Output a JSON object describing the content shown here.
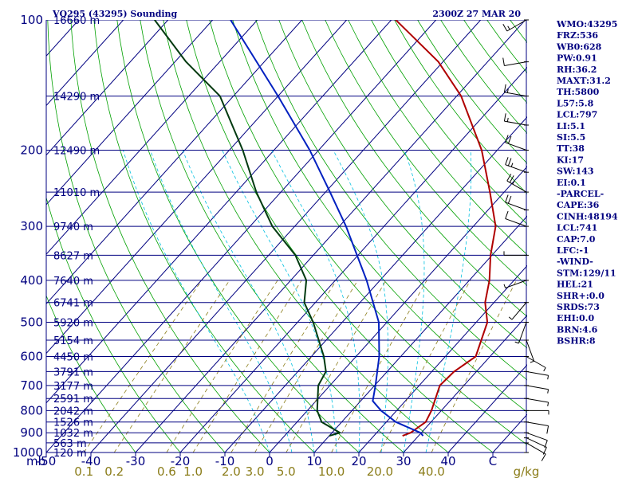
{
  "header": {
    "title": "VQ295 (43295) Sounding",
    "time": "2300Z 27 MAR 20"
  },
  "indices": [
    "WMO:43295",
    "FRZ:536",
    "WB0:628",
    "PW:0.91",
    "RH:36.2",
    "MAXT:31.2",
    "TH:5800",
    "L57:5.8",
    "LCL:797",
    "LI:5.1",
    "SI:5.5",
    "TT:38",
    "KI:17",
    "SW:143",
    "EI:0.1",
    "-PARCEL-",
    "CAPE:36",
    "CINH:48194",
    "LCL:741",
    "CAP:7.0",
    "LFC:-1",
    "-WIND-",
    "STM:129/11",
    "HEL:21",
    "SHR+:0.0",
    "SRDS:73",
    "EHI:0.0",
    "BRN:4.6",
    "BSHR:8"
  ],
  "colors": {
    "axis": "#000080",
    "isobar": "#000080",
    "isotherm": "#000080",
    "dry_adiabat": "#00a000",
    "moist_adiabat": "#00c0e0",
    "mixing_ratio": "#8b7d1a",
    "temperature": "#b00000",
    "dewpoint": "#003a10",
    "parcel": "#0020c0",
    "wind_barb": "#000000"
  },
  "chart_data": {
    "type": "line",
    "title": "VQ295 (43295) Sounding",
    "xlabel": "",
    "ylabel": "mb",
    "y_scale": "log",
    "ylim": [
      1000,
      100
    ],
    "xlim": [
      -50,
      50
    ],
    "pressure_labels": [
      "100",
      "200",
      "300",
      "400",
      "500",
      "600",
      "700",
      "800",
      "900",
      "1000"
    ],
    "pressure_ticks": [
      100,
      200,
      300,
      400,
      500,
      600,
      700,
      800,
      900,
      1000
    ],
    "unit_mb": "mb",
    "temp_ticks": [
      "-50",
      "-40",
      "-30",
      "-20",
      "-10",
      "0",
      "10",
      "20",
      "30",
      "40",
      "C"
    ],
    "mixing_ratio_labels": [
      "0.1",
      "0.2",
      "0.6",
      "1.0",
      "2.0",
      "3.0",
      "5.0",
      "10.0",
      "20.0",
      "40.0",
      "g/kg"
    ],
    "height_labels": [
      {
        "text": "16660 m",
        "p": 100
      },
      {
        "text": "14290 m",
        "p": 150
      },
      {
        "text": "12490 m",
        "p": 200
      },
      {
        "text": "11010 m",
        "p": 250
      },
      {
        "text": "9740 m",
        "p": 300
      },
      {
        "text": "8627 m",
        "p": 350
      },
      {
        "text": "7640 m",
        "p": 400
      },
      {
        "text": "6741 m",
        "p": 450
      },
      {
        "text": "5920 m",
        "p": 500
      },
      {
        "text": "5154 m",
        "p": 550
      },
      {
        "text": "4450 m",
        "p": 600
      },
      {
        "text": "3791 m",
        "p": 650
      },
      {
        "text": "3177 m",
        "p": 700
      },
      {
        "text": "2591 m",
        "p": 750
      },
      {
        "text": "2042 m",
        "p": 800
      },
      {
        "text": "1526 m",
        "p": 850
      },
      {
        "text": "1032 m",
        "p": 900
      },
      {
        "text": "563 m",
        "p": 950
      },
      {
        "text": "120 m",
        "p": 1000
      }
    ],
    "series": [
      {
        "key": "temperature",
        "points": [
          [
            915,
            26.4
          ],
          [
            900,
            27.6
          ],
          [
            850,
            28.8
          ],
          [
            800,
            27.8
          ],
          [
            700,
            24.6
          ],
          [
            650,
            25.0
          ],
          [
            600,
            26.8
          ],
          [
            500,
            22.5
          ],
          [
            450,
            18.0
          ],
          [
            400,
            14.5
          ],
          [
            350,
            9.7
          ],
          [
            300,
            5.0
          ],
          [
            250,
            -3.2
          ],
          [
            200,
            -13.5
          ],
          [
            150,
            -29.0
          ],
          [
            125,
            -41.0
          ],
          [
            100,
            -59.0
          ]
        ]
      },
      {
        "key": "dewpoint",
        "points": [
          [
            915,
            10.0
          ],
          [
            900,
            11.8
          ],
          [
            850,
            5.5
          ],
          [
            800,
            2.2
          ],
          [
            700,
            -2.6
          ],
          [
            650,
            -3.7
          ],
          [
            600,
            -7.2
          ],
          [
            500,
            -16.5
          ],
          [
            450,
            -22.5
          ],
          [
            400,
            -26.5
          ],
          [
            350,
            -34.0
          ],
          [
            300,
            -45.0
          ],
          [
            250,
            -55.5
          ],
          [
            200,
            -67.0
          ],
          [
            150,
            -83.0
          ],
          [
            125,
            -97.5
          ],
          [
            100,
            -113.0
          ]
        ]
      },
      {
        "key": "parcel",
        "points": [
          [
            915,
            31.0
          ],
          [
            900,
            29.8
          ],
          [
            850,
            22.1
          ],
          [
            800,
            16.5
          ],
          [
            760,
            12.7
          ],
          [
            700,
            10.2
          ],
          [
            600,
            5.2
          ],
          [
            500,
            -1.8
          ],
          [
            400,
            -13.0
          ],
          [
            350,
            -20.2
          ],
          [
            300,
            -28.5
          ],
          [
            250,
            -39.0
          ],
          [
            200,
            -52.0
          ],
          [
            150,
            -70.0
          ],
          [
            100,
            -96.0
          ]
        ]
      }
    ],
    "wind_profile": [
      {
        "p": 1000,
        "dir": 270,
        "spd": 0
      },
      {
        "p": 950,
        "dir": 120,
        "spd": 10
      },
      {
        "p": 925,
        "dir": 115,
        "spd": 10
      },
      {
        "p": 900,
        "dir": 110,
        "spd": 10
      },
      {
        "p": 850,
        "dir": 100,
        "spd": 10
      },
      {
        "p": 800,
        "dir": 90,
        "spd": 5
      },
      {
        "p": 750,
        "dir": 100,
        "spd": 5
      },
      {
        "p": 700,
        "dir": 100,
        "spd": 5
      },
      {
        "p": 650,
        "dir": 100,
        "spd": 5
      },
      {
        "p": 600,
        "dir": 120,
        "spd": 5
      },
      {
        "p": 550,
        "dir": 160,
        "spd": 5
      },
      {
        "p": 500,
        "dir": 200,
        "spd": 5
      },
      {
        "p": 450,
        "dir": 220,
        "spd": 5
      },
      {
        "p": 400,
        "dir": 250,
        "spd": 5
      },
      {
        "p": 350,
        "dir": 270,
        "spd": 5
      },
      {
        "p": 300,
        "dir": 290,
        "spd": 10
      },
      {
        "p": 275,
        "dir": 290,
        "spd": 20
      },
      {
        "p": 250,
        "dir": 300,
        "spd": 25
      },
      {
        "p": 225,
        "dir": 290,
        "spd": 25
      },
      {
        "p": 200,
        "dir": 290,
        "spd": 20
      },
      {
        "p": 175,
        "dir": 280,
        "spd": 15
      },
      {
        "p": 150,
        "dir": 280,
        "spd": 15
      },
      {
        "p": 125,
        "dir": 260,
        "spd": 10
      },
      {
        "p": 100,
        "dir": 240,
        "spd": 15
      }
    ],
    "grid": true
  }
}
